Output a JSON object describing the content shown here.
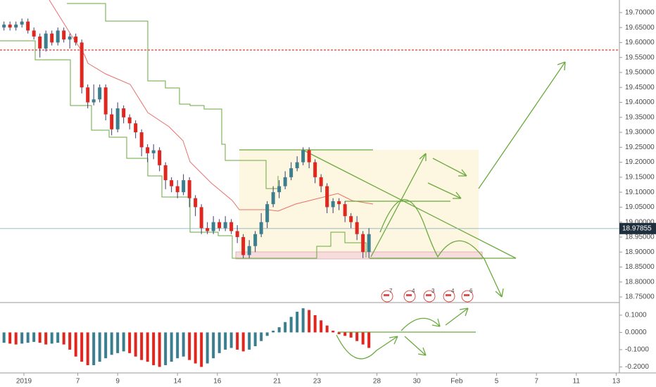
{
  "chart_data": [
    {
      "type": "candlestick",
      "x": [
        -1.0,
        -0.7,
        -0.4,
        -0.1,
        0.2,
        0.5,
        0.8,
        1.1,
        1.4,
        1.7,
        2.0,
        2.3,
        2.6,
        2.9,
        3.2,
        3.5,
        3.8,
        4.1,
        4.4,
        4.7,
        5.0,
        5.3,
        5.6,
        5.9,
        6.2,
        6.5,
        6.8,
        7.1,
        7.4,
        7.7,
        8.0,
        8.3,
        8.6,
        8.9,
        9.2,
        9.5,
        9.8,
        10.1,
        10.4,
        10.7,
        11.0,
        11.3,
        11.6,
        11.9,
        12.2,
        12.5,
        12.8,
        13.1,
        13.4,
        13.7,
        14.0,
        14.3,
        14.6,
        14.9,
        15.2,
        15.5,
        15.8,
        16.1,
        16.4,
        16.7,
        17.0,
        17.3
      ],
      "open": [
        19.65,
        19.66,
        19.65,
        19.66,
        19.67,
        19.64,
        19.62,
        19.58,
        19.63,
        19.6,
        19.64,
        19.61,
        19.62,
        19.6,
        19.45,
        19.4,
        19.41,
        19.45,
        19.36,
        19.31,
        19.38,
        19.35,
        19.33,
        19.3,
        19.25,
        19.23,
        19.24,
        19.19,
        19.14,
        19.12,
        19.1,
        19.14,
        19.08,
        19.05,
        18.98,
        18.97,
        19.0,
        18.98,
        19.0,
        18.97,
        18.95,
        18.89,
        18.92,
        18.96,
        19.0,
        19.06,
        19.1,
        19.12,
        19.15,
        19.18,
        19.2,
        19.24,
        19.2,
        19.15,
        19.12,
        19.05,
        19.07,
        19.06,
        19.02,
        19.0,
        18.96,
        18.9
      ],
      "high": [
        19.67,
        19.67,
        19.67,
        19.68,
        19.68,
        19.65,
        19.63,
        19.64,
        19.64,
        19.65,
        19.65,
        19.63,
        19.63,
        19.61,
        19.46,
        19.46,
        19.46,
        19.46,
        19.38,
        19.4,
        19.39,
        19.36,
        19.34,
        19.31,
        19.26,
        19.26,
        19.25,
        19.2,
        19.15,
        19.14,
        19.16,
        19.15,
        19.09,
        19.06,
        19.0,
        19.02,
        19.01,
        19.02,
        19.01,
        18.99,
        18.96,
        18.94,
        18.97,
        19.03,
        19.07,
        19.12,
        19.14,
        19.17,
        19.2,
        19.22,
        19.25,
        19.25,
        19.21,
        19.16,
        19.13,
        19.08,
        19.08,
        19.07,
        19.03,
        19.02,
        18.97,
        18.98
      ],
      "low": [
        19.64,
        19.64,
        19.64,
        19.65,
        19.63,
        19.61,
        19.55,
        19.57,
        19.59,
        19.59,
        19.6,
        19.58,
        19.59,
        19.43,
        19.38,
        19.39,
        19.4,
        19.34,
        19.29,
        19.3,
        19.33,
        19.31,
        19.28,
        19.22,
        19.2,
        19.21,
        19.17,
        19.11,
        19.1,
        19.08,
        19.09,
        19.05,
        19.02,
        18.96,
        18.96,
        18.96,
        18.97,
        18.97,
        18.96,
        18.93,
        18.88,
        18.88,
        18.9,
        18.95,
        18.98,
        19.05,
        19.08,
        19.11,
        19.14,
        19.17,
        19.19,
        19.18,
        19.13,
        19.1,
        19.03,
        19.03,
        19.04,
        19.0,
        18.98,
        18.94,
        18.88,
        18.88
      ],
      "close": [
        19.66,
        19.65,
        19.66,
        19.67,
        19.64,
        19.62,
        19.58,
        19.63,
        19.6,
        19.64,
        19.61,
        19.62,
        19.6,
        19.45,
        19.4,
        19.41,
        19.45,
        19.36,
        19.31,
        19.38,
        19.35,
        19.33,
        19.3,
        19.25,
        19.23,
        19.24,
        19.19,
        19.14,
        19.12,
        19.1,
        19.14,
        19.08,
        19.05,
        18.98,
        18.97,
        19.0,
        18.98,
        19.0,
        18.97,
        18.95,
        18.89,
        18.92,
        18.96,
        19.0,
        19.06,
        19.1,
        19.12,
        19.15,
        19.18,
        19.2,
        19.24,
        19.2,
        19.15,
        19.12,
        19.05,
        19.07,
        19.06,
        19.02,
        19.0,
        18.96,
        18.9,
        18.96
      ],
      "up_color": "#3b7f8e",
      "down_color": "#e0271f",
      "xlim": [
        -1.2,
        29.86
      ],
      "xticks": [
        {
          "value": 0,
          "label": "2019"
        },
        {
          "value": 2.7,
          "label": "7"
        },
        {
          "value": 4.7,
          "label": "9"
        },
        {
          "value": 7.7,
          "label": "14"
        },
        {
          "value": 9.7,
          "label": "16"
        },
        {
          "value": 12.7,
          "label": "21"
        },
        {
          "value": 14.7,
          "label": "23"
        },
        {
          "value": 17.7,
          "label": "28"
        },
        {
          "value": 19.7,
          "label": "30"
        },
        {
          "value": 21.7,
          "label": "Feb"
        },
        {
          "value": 23.7,
          "label": "5"
        },
        {
          "value": 25.7,
          "label": "7"
        },
        {
          "value": 27.7,
          "label": "11"
        },
        {
          "value": 29.7,
          "label": "13"
        }
      ],
      "ylim": [
        18.736,
        19.742
      ],
      "yticks": [
        {
          "value": 19.7,
          "label": "19.70000"
        },
        {
          "value": 19.65,
          "label": "19.65000"
        },
        {
          "value": 19.6,
          "label": "19.60000"
        },
        {
          "value": 19.55,
          "label": "19.55000"
        },
        {
          "value": 19.5,
          "label": "19.50000"
        },
        {
          "value": 19.45,
          "label": "19.45000"
        },
        {
          "value": 19.4,
          "label": "19.40000"
        },
        {
          "value": 19.35,
          "label": "19.35000"
        },
        {
          "value": 19.3,
          "label": "19.30000"
        },
        {
          "value": 19.25,
          "label": "19.25000"
        },
        {
          "value": 19.2,
          "label": "19.20000"
        },
        {
          "value": 19.15,
          "label": "19.15000"
        },
        {
          "value": 19.1,
          "label": "19.10000"
        },
        {
          "value": 19.05,
          "label": "19.05000"
        },
        {
          "value": 19.0,
          "label": "19.00000"
        },
        {
          "value": 18.95,
          "label": "18.95000"
        },
        {
          "value": 18.9,
          "label": "18.90000"
        },
        {
          "value": 18.85,
          "label": "18.85000"
        },
        {
          "value": 18.8,
          "label": "18.80000"
        },
        {
          "value": 18.75,
          "label": "18.75000"
        }
      ],
      "last_price": 18.97855,
      "alert_level": 19.575,
      "event_flags": [
        "7",
        "4",
        "3",
        "4",
        "6"
      ]
    },
    {
      "type": "histogram",
      "values": [
        -0.06,
        -0.065,
        -0.07,
        -0.065,
        -0.06,
        -0.055,
        -0.06,
        -0.07,
        -0.065,
        -0.06,
        -0.07,
        -0.1,
        -0.14,
        -0.17,
        -0.19,
        -0.19,
        -0.17,
        -0.15,
        -0.13,
        -0.12,
        -0.11,
        -0.12,
        -0.14,
        -0.16,
        -0.17,
        -0.19,
        -0.2,
        -0.19,
        -0.17,
        -0.15,
        -0.14,
        -0.16,
        -0.18,
        -0.2,
        -0.18,
        -0.15,
        -0.12,
        -0.1,
        -0.09,
        -0.1,
        -0.11,
        -0.1,
        -0.08,
        -0.05,
        -0.02,
        0.01,
        0.03,
        0.06,
        0.09,
        0.12,
        0.14,
        0.13,
        0.1,
        0.07,
        0.04,
        0.01,
        -0.01,
        -0.02,
        -0.03,
        -0.05,
        -0.07,
        -0.09
      ],
      "rise_color": "#3b7f8e",
      "fall_color": "#e0271f",
      "ylim": [
        -0.235,
        0.165
      ],
      "yticks": [
        {
          "value": 0.1,
          "label": "0.1000"
        },
        {
          "value": 0,
          "label": "0.0000"
        },
        {
          "value": -0.1,
          "label": "-0.1000"
        },
        {
          "value": -0.2,
          "label": "-0.2000"
        }
      ]
    }
  ]
}
